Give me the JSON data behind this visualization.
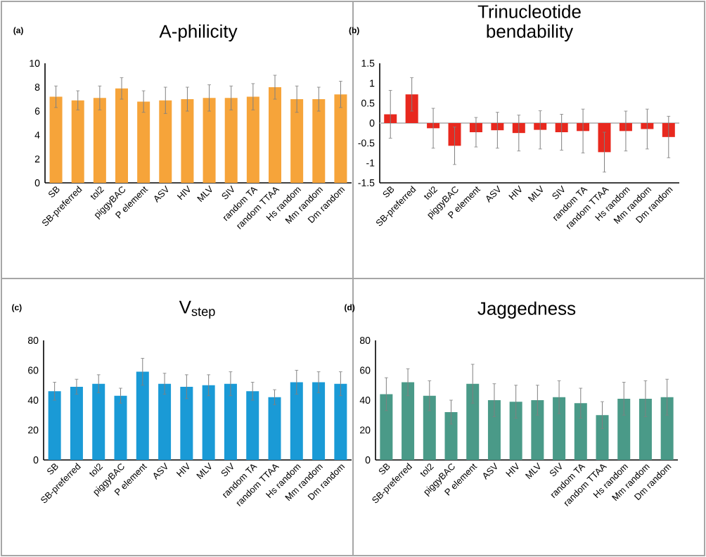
{
  "chart_data": [
    {
      "type": "bar",
      "title": "A-philicity",
      "annotations": [
        "(a)"
      ],
      "categories": [
        "SB",
        "SB-preferred",
        "tol2",
        "piggyBAC",
        "P element",
        "ASV",
        "HIV",
        "MLV",
        "SIV",
        "random TA",
        "random TTAA",
        "Hs random",
        "Mm random",
        "Dm random"
      ],
      "values": [
        7.2,
        6.9,
        7.1,
        7.9,
        6.8,
        6.9,
        7.0,
        7.1,
        7.1,
        7.2,
        8.0,
        7.0,
        7.0,
        7.4
      ],
      "errors": [
        0.9,
        0.8,
        1.0,
        0.9,
        0.9,
        1.1,
        1.0,
        1.1,
        1.0,
        1.1,
        1.0,
        1.1,
        1.0,
        1.1
      ],
      "color": "#f6a43a",
      "ylim": [
        0,
        10
      ],
      "yticks": [
        0,
        2,
        4,
        6,
        8,
        10
      ]
    },
    {
      "type": "bar",
      "title": "Trinucleotide bendability",
      "annotations": [
        "(b)"
      ],
      "categories": [
        "SB",
        "SB-preferred",
        "tol2",
        "piggyBAC",
        "P element",
        "ASV",
        "HIV",
        "MLV",
        "SIV",
        "random TA",
        "random TTAA",
        "Hs random",
        "Mm random",
        "Dm random"
      ],
      "values": [
        0.22,
        0.72,
        -0.13,
        -0.57,
        -0.23,
        -0.18,
        -0.25,
        -0.17,
        -0.23,
        -0.2,
        -0.73,
        -0.2,
        -0.15,
        -0.35
      ],
      "errors": [
        0.6,
        0.42,
        0.5,
        0.47,
        0.37,
        0.45,
        0.45,
        0.48,
        0.45,
        0.55,
        0.5,
        0.5,
        0.5,
        0.52
      ],
      "color": "#e8281e",
      "ylim": [
        -1.5,
        1.5
      ],
      "yticks": [
        -1.5,
        -1,
        -0.5,
        0,
        0.5,
        1,
        1.5
      ],
      "ref_lines": [
        {
          "axis": "y",
          "value": 0,
          "color": "#bfbfbf"
        }
      ]
    },
    {
      "type": "bar",
      "title": "V$_{step}$",
      "annotations": [
        "(c)"
      ],
      "categories": [
        "SB",
        "SB-preferred",
        "tol2",
        "piggyBAC",
        "P element",
        "ASV",
        "HIV",
        "MLV",
        "SIV",
        "random TA",
        "random TTAA",
        "Hs random",
        "Mm random",
        "Dm random"
      ],
      "values": [
        46,
        49,
        51,
        43,
        59,
        51,
        49,
        50,
        51,
        46,
        42,
        52,
        52,
        51
      ],
      "errors": [
        6,
        5,
        6,
        5,
        9,
        7,
        8,
        7,
        8,
        6,
        5,
        8,
        7,
        8
      ],
      "color": "#1a9ad6",
      "ylim": [
        0,
        80
      ],
      "yticks": [
        0,
        20,
        40,
        60,
        80
      ]
    },
    {
      "type": "bar",
      "title": "Jaggedness",
      "annotations": [
        "(d)"
      ],
      "categories": [
        "SB",
        "SB-preferred",
        "tol2",
        "piggyBAC",
        "P element",
        "ASV",
        "HIV",
        "MLV",
        "SIV",
        "random TA",
        "random TTAA",
        "Hs random",
        "Mm random",
        "Dm random"
      ],
      "values": [
        44,
        52,
        43,
        32,
        51,
        40,
        39,
        40,
        42,
        38,
        30,
        41,
        41,
        42
      ],
      "errors": [
        11,
        9,
        10,
        8,
        13,
        11,
        11,
        10,
        11,
        10,
        9,
        11,
        12,
        12
      ],
      "color": "#4a9a88",
      "ylim": [
        0,
        80
      ],
      "yticks": [
        0,
        20,
        40,
        60,
        80
      ]
    }
  ]
}
